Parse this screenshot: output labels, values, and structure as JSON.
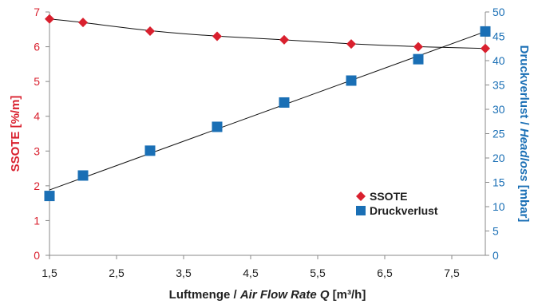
{
  "chart_data": {
    "type": "scatter",
    "x_ticks": [
      "1,5",
      "2,5",
      "3,5",
      "4,5",
      "5,5",
      "6,5",
      "7,5"
    ],
    "x_tick_values": [
      1.5,
      2.5,
      3.5,
      4.5,
      5.5,
      6.5,
      7.5
    ],
    "xlim": [
      1.5,
      8
    ],
    "xlabel_plain": "Luftmenge / ",
    "xlabel_italic": "Air Flow Rate Q",
    "xlabel_unit": " [m³/h]",
    "y_left": {
      "label": "SSOTE [%/m]",
      "ticks": [
        "0",
        "1",
        "2",
        "3",
        "4",
        "5",
        "6",
        "7"
      ],
      "ylim": [
        0,
        7
      ]
    },
    "y_right": {
      "label_plain": "Druckverlust / ",
      "label_italic": "Headloss",
      "label_unit": " [mbar]",
      "ticks": [
        "0",
        "5",
        "10",
        "15",
        "20",
        "25",
        "30",
        "35",
        "40",
        "45",
        "50"
      ],
      "ylim": [
        0,
        50
      ]
    },
    "series": [
      {
        "name": "SSOTE",
        "axis": "left",
        "marker": "diamond",
        "color": "#d9202e",
        "x": [
          1.5,
          2,
          3,
          4,
          5,
          6,
          7,
          8
        ],
        "values": [
          6.8,
          6.7,
          6.45,
          6.3,
          6.2,
          6.08,
          6.0,
          5.95
        ]
      },
      {
        "name": "Druckverlust",
        "axis": "right",
        "marker": "square",
        "color": "#1a6fb5",
        "x": [
          1.5,
          2,
          3,
          4,
          5,
          6,
          7,
          8
        ],
        "values": [
          12.2,
          16.4,
          21.5,
          26.4,
          31.4,
          35.9,
          40.3,
          46.0
        ]
      }
    ],
    "legend_position": "lower-right",
    "grid": false,
    "colors": {
      "left_axis": "#d9202e",
      "right_axis": "#1a6fb5",
      "trend": "#111111",
      "axis_line": "#888888"
    }
  }
}
